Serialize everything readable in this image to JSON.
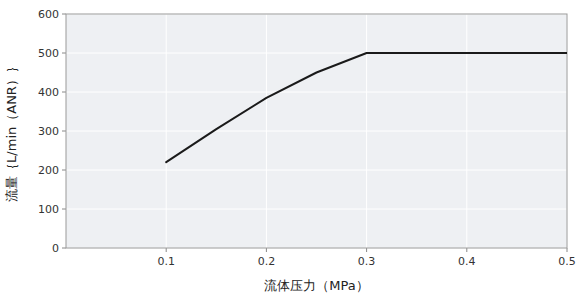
{
  "chart_data": {
    "type": "line",
    "x": [
      0.1,
      0.15,
      0.2,
      0.25,
      0.3,
      0.35,
      0.4,
      0.5
    ],
    "values": [
      220,
      305,
      385,
      450,
      500,
      500,
      500,
      500
    ],
    "color": "#1a1a1a",
    "xlabel": "流体压力（MPa）",
    "ylabel": "流量｛L/min（ANR）｝",
    "xlim": [
      0,
      0.5
    ],
    "ylim": [
      0,
      600
    ],
    "xticks": [
      0.1,
      0.2,
      0.3,
      0.4,
      0.5
    ],
    "yticks": [
      0,
      100,
      200,
      300,
      400,
      500,
      600
    ],
    "grid": true
  }
}
